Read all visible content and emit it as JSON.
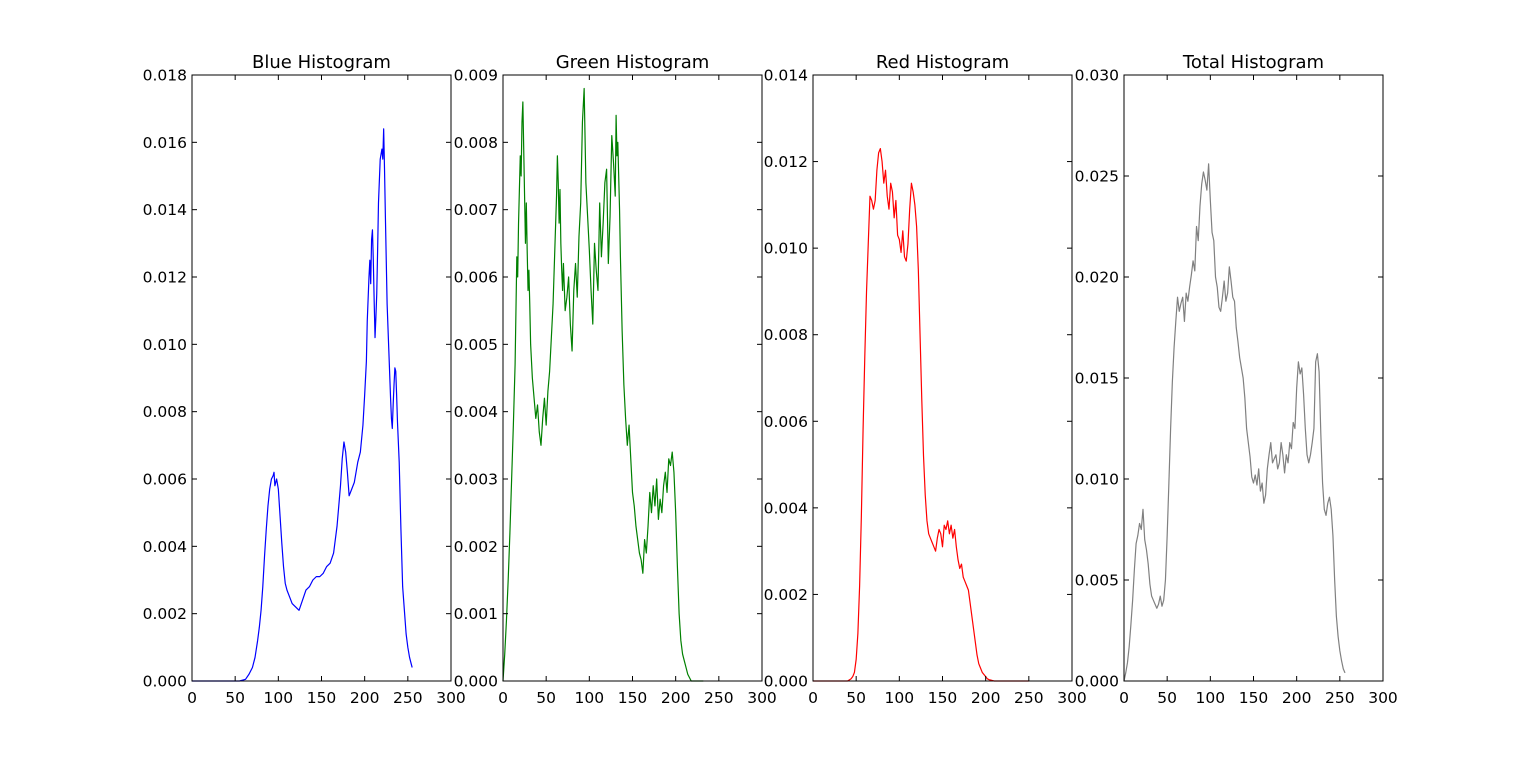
{
  "chart_data": [
    {
      "type": "line",
      "title": "Blue Histogram",
      "color": "#0000ff",
      "xlim": [
        0,
        300
      ],
      "ylim": [
        0,
        0.018
      ],
      "xticks": [
        0,
        50,
        100,
        150,
        200,
        250,
        300
      ],
      "xtick_labels": [
        "0",
        "50",
        "100",
        "150",
        "200",
        "250",
        "300"
      ],
      "yticks": [
        0,
        0.002,
        0.004,
        0.006,
        0.008,
        0.01,
        0.012,
        0.014,
        0.016,
        0.018
      ],
      "ytick_labels": [
        "0.000",
        "0.002",
        "0.004",
        "0.006",
        "0.008",
        "0.010",
        "0.012",
        "0.014",
        "0.016",
        "0.018"
      ],
      "series": [
        {
          "x": [
            0,
            20,
            40,
            55,
            62,
            66,
            70,
            73,
            76,
            78,
            80,
            82,
            84,
            86,
            88,
            90,
            92,
            94,
            95,
            96,
            98,
            100,
            102,
            104,
            106,
            108,
            110,
            113,
            116,
            120,
            124,
            128,
            132,
            136,
            140,
            144,
            148,
            152,
            156,
            160,
            164,
            168,
            170,
            172,
            174,
            176,
            178,
            180,
            182,
            185,
            188,
            192,
            195,
            198,
            200,
            202,
            203,
            205,
            206,
            207,
            208,
            209,
            210,
            211,
            212,
            213,
            214,
            215,
            216,
            218,
            220,
            221,
            222,
            223,
            224,
            225,
            226,
            228,
            230,
            231,
            232,
            233,
            234,
            235,
            236,
            237,
            238,
            240,
            242,
            244,
            246,
            248,
            250,
            252,
            254,
            255
          ],
          "y": [
            0,
            0,
            0,
            0,
            5e-05,
            0.0002,
            0.0004,
            0.0007,
            0.0012,
            0.0016,
            0.0021,
            0.0028,
            0.0037,
            0.0045,
            0.0052,
            0.0057,
            0.006,
            0.0061,
            0.0062,
            0.0058,
            0.006,
            0.0057,
            0.0049,
            0.0041,
            0.0034,
            0.0029,
            0.0027,
            0.0025,
            0.0023,
            0.0022,
            0.0021,
            0.0024,
            0.0027,
            0.0028,
            0.003,
            0.0031,
            0.0031,
            0.0032,
            0.0034,
            0.0035,
            0.0038,
            0.0046,
            0.0052,
            0.0058,
            0.0066,
            0.0071,
            0.0068,
            0.0062,
            0.0055,
            0.0057,
            0.0059,
            0.0065,
            0.0068,
            0.0076,
            0.0085,
            0.0095,
            0.0107,
            0.012,
            0.0125,
            0.0118,
            0.0131,
            0.0134,
            0.0125,
            0.0113,
            0.0102,
            0.0108,
            0.0115,
            0.0128,
            0.0142,
            0.0155,
            0.0158,
            0.0155,
            0.0164,
            0.0152,
            0.0138,
            0.0125,
            0.0112,
            0.0098,
            0.0084,
            0.0078,
            0.0075,
            0.0082,
            0.0088,
            0.0093,
            0.0092,
            0.0085,
            0.0077,
            0.0065,
            0.0045,
            0.0028,
            0.0021,
            0.0014,
            0.001,
            0.0007,
            0.0005,
            0.0004
          ]
        }
      ]
    },
    {
      "type": "line",
      "title": "Green Histogram",
      "color": "#008000",
      "xlim": [
        0,
        300
      ],
      "ylim": [
        0,
        0.009
      ],
      "xticks": [
        0,
        50,
        100,
        150,
        200,
        250,
        300
      ],
      "xtick_labels": [
        "0",
        "50",
        "100",
        "150",
        "200",
        "250",
        "300"
      ],
      "yticks": [
        0,
        0.001,
        0.002,
        0.003,
        0.004,
        0.005,
        0.006,
        0.007,
        0.008,
        0.009
      ],
      "ytick_labels": [
        "0.000",
        "0.001",
        "0.002",
        "0.003",
        "0.004",
        "0.005",
        "0.006",
        "0.007",
        "0.008",
        "0.009"
      ],
      "series": [
        {
          "x": [
            0,
            2,
            4,
            6,
            8,
            10,
            12,
            14,
            15,
            16,
            17,
            18,
            19,
            20,
            21,
            22,
            23,
            24,
            25,
            26,
            27,
            28,
            29,
            30,
            31,
            32,
            34,
            36,
            38,
            40,
            42,
            44,
            46,
            48,
            50,
            52,
            54,
            56,
            58,
            60,
            62,
            63,
            64,
            65,
            66,
            67,
            68,
            69,
            70,
            72,
            74,
            76,
            78,
            80,
            82,
            84,
            86,
            88,
            90,
            92,
            94,
            96,
            98,
            100,
            102,
            104,
            106,
            108,
            110,
            112,
            114,
            116,
            118,
            120,
            122,
            124,
            126,
            128,
            130,
            131,
            132,
            133,
            134,
            135,
            136,
            138,
            140,
            142,
            144,
            146,
            148,
            150,
            152,
            154,
            156,
            158,
            160,
            162,
            164,
            166,
            168,
            170,
            172,
            174,
            176,
            178,
            180,
            182,
            184,
            186,
            188,
            190,
            192,
            194,
            196,
            198,
            200,
            202,
            204,
            206,
            208,
            210,
            212,
            214,
            216,
            218,
            220,
            222,
            224,
            226,
            228,
            230,
            232
          ],
          "y": [
            0,
            0.0004,
            0.0009,
            0.0015,
            0.0022,
            0.003,
            0.0038,
            0.0047,
            0.0055,
            0.0063,
            0.006,
            0.0068,
            0.0073,
            0.0078,
            0.0075,
            0.0083,
            0.0086,
            0.0079,
            0.0072,
            0.0065,
            0.0071,
            0.0064,
            0.0058,
            0.0061,
            0.0056,
            0.005,
            0.0045,
            0.0042,
            0.0039,
            0.0041,
            0.0037,
            0.0035,
            0.0039,
            0.0042,
            0.0038,
            0.0043,
            0.0046,
            0.0051,
            0.0056,
            0.0064,
            0.0072,
            0.0078,
            0.0074,
            0.0068,
            0.0073,
            0.0065,
            0.0061,
            0.0058,
            0.0062,
            0.0055,
            0.0057,
            0.006,
            0.0053,
            0.0049,
            0.0058,
            0.0062,
            0.0057,
            0.0066,
            0.0071,
            0.0083,
            0.0088,
            0.0074,
            0.0069,
            0.0064,
            0.0058,
            0.0053,
            0.0065,
            0.0061,
            0.0058,
            0.0071,
            0.0063,
            0.0068,
            0.0074,
            0.0076,
            0.0062,
            0.0069,
            0.0081,
            0.0077,
            0.0072,
            0.0084,
            0.0078,
            0.008,
            0.0075,
            0.007,
            0.0063,
            0.0052,
            0.0044,
            0.0039,
            0.0035,
            0.0038,
            0.0033,
            0.0028,
            0.0026,
            0.0023,
            0.0021,
            0.0019,
            0.0018,
            0.0016,
            0.0021,
            0.0019,
            0.0023,
            0.0028,
            0.0025,
            0.0029,
            0.0026,
            0.003,
            0.0024,
            0.0027,
            0.0025,
            0.0029,
            0.0031,
            0.0028,
            0.0033,
            0.0032,
            0.0034,
            0.0031,
            0.0025,
            0.0017,
            0.001,
            0.0006,
            0.0004,
            0.0003,
            0.0002,
            0.0001,
            5e-05,
            0,
            0,
            0,
            0,
            0,
            0,
            0,
            0
          ]
        }
      ]
    },
    {
      "type": "line",
      "title": "Red Histogram",
      "color": "#ff0000",
      "xlim": [
        0,
        300
      ],
      "ylim": [
        0,
        0.014
      ],
      "xticks": [
        0,
        50,
        100,
        150,
        200,
        250,
        300
      ],
      "xtick_labels": [
        "0",
        "50",
        "100",
        "150",
        "200",
        "250",
        "300"
      ],
      "yticks": [
        0,
        0.002,
        0.004,
        0.006,
        0.008,
        0.01,
        0.012,
        0.014
      ],
      "ytick_labels": [
        "0.000",
        "0.002",
        "0.004",
        "0.006",
        "0.008",
        "0.010",
        "0.012",
        "0.014"
      ],
      "series": [
        {
          "x": [
            0,
            20,
            35,
            40,
            44,
            46,
            48,
            50,
            52,
            54,
            56,
            58,
            60,
            62,
            64,
            66,
            68,
            70,
            72,
            74,
            76,
            78,
            80,
            82,
            84,
            86,
            88,
            90,
            92,
            94,
            96,
            98,
            100,
            102,
            104,
            106,
            108,
            110,
            112,
            114,
            116,
            118,
            120,
            122,
            124,
            126,
            128,
            130,
            132,
            134,
            136,
            138,
            140,
            142,
            144,
            146,
            148,
            150,
            152,
            154,
            156,
            158,
            160,
            162,
            164,
            166,
            168,
            170,
            172,
            174,
            176,
            178,
            180,
            182,
            184,
            186,
            188,
            190,
            192,
            194,
            196,
            198,
            200,
            202,
            204,
            206,
            208,
            210,
            212,
            214,
            216,
            218,
            220,
            230,
            240,
            250
          ],
          "y": [
            0,
            0,
            0,
            0,
            5e-05,
            0.0001,
            0.0002,
            0.0005,
            0.0011,
            0.0022,
            0.0038,
            0.0058,
            0.0075,
            0.009,
            0.0101,
            0.0112,
            0.0111,
            0.0109,
            0.0111,
            0.0118,
            0.0122,
            0.0123,
            0.012,
            0.0115,
            0.0118,
            0.0112,
            0.0109,
            0.0115,
            0.0113,
            0.0107,
            0.0111,
            0.0103,
            0.0102,
            0.0099,
            0.0104,
            0.0098,
            0.0097,
            0.0101,
            0.0109,
            0.0115,
            0.0113,
            0.011,
            0.0105,
            0.0095,
            0.008,
            0.0065,
            0.0052,
            0.0043,
            0.0037,
            0.0034,
            0.0033,
            0.0032,
            0.0031,
            0.003,
            0.0033,
            0.0035,
            0.0034,
            0.0031,
            0.0036,
            0.0035,
            0.0037,
            0.0034,
            0.0036,
            0.0033,
            0.0035,
            0.0031,
            0.0028,
            0.0026,
            0.0027,
            0.0024,
            0.0023,
            0.0022,
            0.0021,
            0.0018,
            0.0015,
            0.0012,
            0.0009,
            0.0006,
            0.0004,
            0.0003,
            0.0002,
            0.00015,
            0.0001,
            5e-05,
            3e-05,
            2e-05,
            1e-05,
            0,
            0,
            0,
            0,
            0,
            0,
            0,
            0,
            0
          ]
        }
      ]
    },
    {
      "type": "line",
      "title": "Total Histogram",
      "color": "#808080",
      "xlim": [
        0,
        300
      ],
      "ylim": [
        0,
        0.03
      ],
      "xticks": [
        0,
        50,
        100,
        150,
        200,
        250,
        300
      ],
      "xtick_labels": [
        "0",
        "50",
        "100",
        "150",
        "200",
        "250",
        "300"
      ],
      "yticks": [
        0,
        0.005,
        0.01,
        0.015,
        0.02,
        0.025,
        0.03
      ],
      "ytick_labels": [
        "0.000",
        "0.005",
        "0.010",
        "0.015",
        "0.020",
        "0.025",
        "0.030"
      ],
      "series": [
        {
          "x": [
            0,
            2,
            4,
            6,
            8,
            10,
            12,
            14,
            16,
            18,
            20,
            22,
            24,
            26,
            28,
            30,
            32,
            34,
            36,
            38,
            40,
            42,
            44,
            46,
            48,
            50,
            52,
            54,
            56,
            58,
            60,
            62,
            64,
            66,
            68,
            70,
            72,
            74,
            76,
            78,
            80,
            82,
            84,
            86,
            88,
            90,
            92,
            94,
            96,
            98,
            100,
            102,
            104,
            106,
            108,
            110,
            112,
            114,
            116,
            118,
            120,
            122,
            124,
            126,
            128,
            130,
            132,
            134,
            136,
            138,
            140,
            142,
            144,
            146,
            148,
            150,
            152,
            154,
            156,
            158,
            160,
            162,
            164,
            166,
            168,
            170,
            172,
            174,
            176,
            178,
            180,
            182,
            184,
            186,
            188,
            190,
            192,
            194,
            196,
            198,
            200,
            202,
            204,
            206,
            208,
            210,
            212,
            214,
            216,
            218,
            220,
            222,
            224,
            226,
            228,
            230,
            232,
            234,
            236,
            238,
            240,
            242,
            244,
            246,
            248,
            250,
            252,
            254,
            256
          ],
          "y": [
            0,
            0.0004,
            0.0009,
            0.0017,
            0.0028,
            0.004,
            0.0055,
            0.0068,
            0.0072,
            0.0078,
            0.0075,
            0.0085,
            0.007,
            0.0065,
            0.0058,
            0.0048,
            0.0042,
            0.004,
            0.0038,
            0.0036,
            0.0038,
            0.0042,
            0.0037,
            0.004,
            0.005,
            0.0072,
            0.0098,
            0.0125,
            0.0148,
            0.0165,
            0.0178,
            0.019,
            0.0183,
            0.0187,
            0.019,
            0.0178,
            0.0192,
            0.0188,
            0.0195,
            0.0201,
            0.0208,
            0.0203,
            0.0225,
            0.0218,
            0.0235,
            0.0246,
            0.0252,
            0.0248,
            0.0243,
            0.0256,
            0.0238,
            0.0222,
            0.0218,
            0.02,
            0.0195,
            0.0185,
            0.0183,
            0.019,
            0.0198,
            0.0188,
            0.0192,
            0.0205,
            0.0198,
            0.019,
            0.0188,
            0.0175,
            0.0168,
            0.016,
            0.0155,
            0.015,
            0.014,
            0.0125,
            0.0118,
            0.0111,
            0.0101,
            0.0098,
            0.0102,
            0.0097,
            0.0105,
            0.0094,
            0.0098,
            0.0088,
            0.0092,
            0.0105,
            0.0112,
            0.0118,
            0.0108,
            0.011,
            0.0112,
            0.0105,
            0.0108,
            0.0118,
            0.0112,
            0.0103,
            0.0112,
            0.0108,
            0.0118,
            0.0115,
            0.0128,
            0.0125,
            0.0145,
            0.0158,
            0.0152,
            0.0155,
            0.0142,
            0.0125,
            0.0112,
            0.0108,
            0.0112,
            0.0118,
            0.0125,
            0.0158,
            0.0162,
            0.0153,
            0.0122,
            0.0098,
            0.0085,
            0.0082,
            0.0088,
            0.0091,
            0.0085,
            0.0072,
            0.005,
            0.0032,
            0.0022,
            0.0015,
            0.001,
            0.0006,
            0.0004
          ]
        }
      ]
    }
  ]
}
